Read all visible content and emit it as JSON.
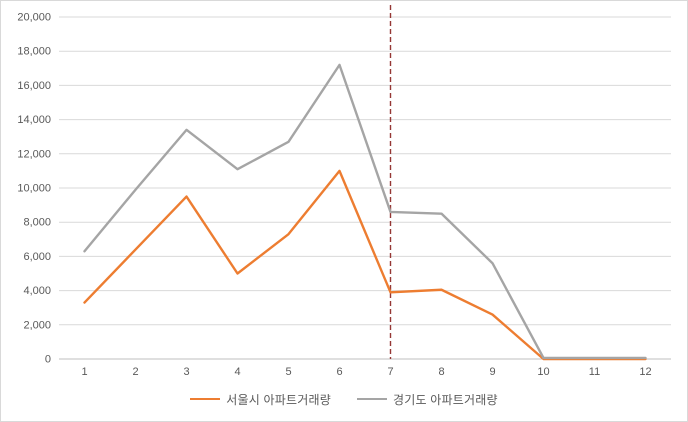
{
  "chart_data": {
    "type": "line",
    "title": "",
    "xlabel": "",
    "ylabel": "",
    "x": [
      1,
      2,
      3,
      4,
      5,
      6,
      7,
      8,
      9,
      10,
      11,
      12
    ],
    "series": [
      {
        "name": "서울시 아파트거래량",
        "color": "#ED7D31",
        "values": [
          3300,
          6400,
          9500,
          5000,
          7300,
          11000,
          3900,
          4050,
          2600,
          0,
          0,
          0
        ]
      },
      {
        "name": "경기도 아파트거래량",
        "color": "#A5A5A5",
        "values": [
          6300,
          9900,
          13400,
          11100,
          12700,
          17200,
          8600,
          8500,
          5600,
          60,
          60,
          60
        ]
      }
    ],
    "ylim": [
      0,
      20000
    ],
    "ytick_step": 2000,
    "ytick_labels": [
      "0",
      "2,000",
      "4,000",
      "6,000",
      "8,000",
      "10,000",
      "12,000",
      "14,000",
      "16,000",
      "18,000",
      "20,000"
    ],
    "grid": true,
    "legend_position": "bottom",
    "annotation": {
      "type": "vline",
      "x": 6.5,
      "color": "#953735",
      "style": "dashed"
    }
  },
  "colors": {
    "gridline": "#d9d9d9",
    "axis_line": "#bfbfbf",
    "tick_label": "#595959",
    "background": "#ffffff",
    "border": "#d9d9d9"
  }
}
